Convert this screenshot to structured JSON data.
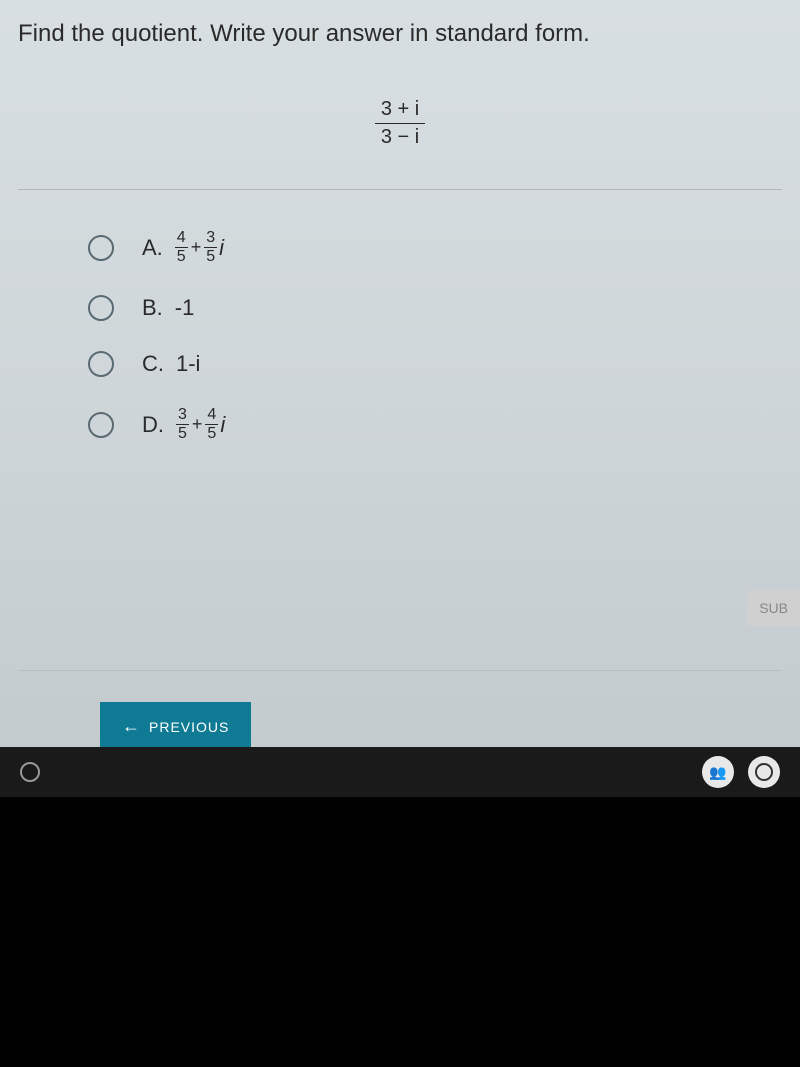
{
  "question": {
    "text": "Find the quotient. Write your answer in standard form.",
    "expression": {
      "numerator": "3 + i",
      "denominator": "3 − i"
    }
  },
  "options": {
    "a": {
      "letter": "A.",
      "frac1_num": "4",
      "frac1_den": "5",
      "op": "+",
      "frac2_num": "3",
      "frac2_den": "5",
      "trail": "i"
    },
    "b": {
      "letter": "B.",
      "text": "-1"
    },
    "c": {
      "letter": "C.",
      "text": "1-i"
    },
    "d": {
      "letter": "D.",
      "frac1_num": "3",
      "frac1_den": "5",
      "op": "+",
      "frac2_num": "4",
      "frac2_den": "5",
      "trail": "i"
    }
  },
  "buttons": {
    "submit": "SUB",
    "previous": "PREVIOUS"
  },
  "colors": {
    "primary_button": "#0e7a93",
    "text": "#2a2a2a",
    "radio_border": "#5a6a72"
  }
}
